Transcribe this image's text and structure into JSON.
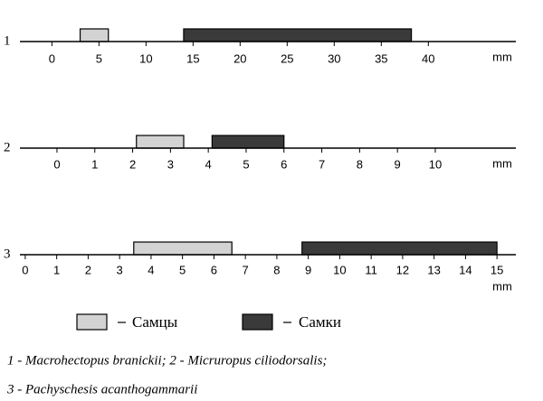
{
  "chart_data": [
    {
      "type": "range",
      "label": "1",
      "unit": "mm",
      "xlim": [
        -3.4,
        49.3
      ],
      "xticks": [
        0,
        5,
        10,
        15,
        20,
        25,
        30,
        35,
        40
      ],
      "ranges": [
        [
          3,
          6
        ],
        [
          14,
          38.2
        ]
      ]
    },
    {
      "type": "range",
      "label": "2",
      "unit": "mm",
      "xlim": [
        -0.98,
        12.13
      ],
      "xticks": [
        0,
        1,
        2,
        3,
        4,
        5,
        6,
        7,
        8,
        9,
        10
      ],
      "ranges": [
        [
          2.1,
          3.35
        ],
        [
          4.1,
          6
        ]
      ]
    },
    {
      "type": "range",
      "label": "3",
      "unit": "mm",
      "xlim": [
        -0.17,
        15.6
      ],
      "xticks": [
        0,
        1,
        2,
        3,
        4,
        5,
        6,
        7,
        8,
        9,
        10,
        11,
        12,
        13,
        14,
        15
      ],
      "ranges": [
        [
          3.45,
          6.57
        ],
        [
          8.8,
          15
        ]
      ]
    }
  ],
  "legend": [
    {
      "name": "Самцы",
      "color": "#d3d3d3"
    },
    {
      "name": "Самки",
      "color": "#3a3a3a"
    }
  ],
  "notes": [
    "1 - Macrohectopus branickii; 2 - Micruropus ciliodorsalis;",
    "3 - Pachyschesis acanthogammarii"
  ]
}
